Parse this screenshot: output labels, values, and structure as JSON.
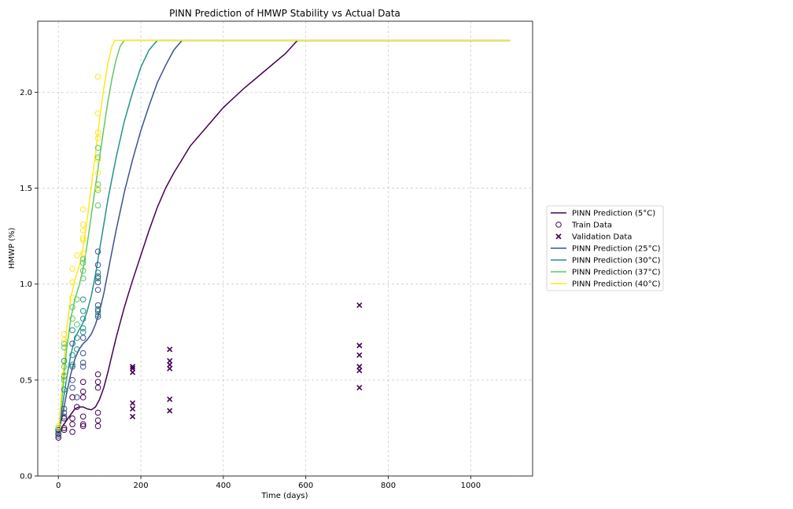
{
  "chart_data": {
    "type": "line",
    "title": "PINN Prediction of HMWP Stability vs Actual Data",
    "xlabel": "Time (days)",
    "ylabel": "HMWP (%)",
    "xlim": [
      -50,
      1150
    ],
    "ylim": [
      0,
      2.37
    ],
    "xticks": [
      0,
      200,
      400,
      600,
      800,
      1000
    ],
    "yticks": [
      0.0,
      0.5,
      1.0,
      1.5,
      2.0
    ],
    "xtick_labels": [
      "0",
      "200",
      "400",
      "600",
      "800",
      "1000"
    ],
    "ytick_labels": [
      "0.0",
      "0.5",
      "1.0",
      "1.5",
      "2.0"
    ],
    "grid": true,
    "legend_position": "center-right-outside",
    "colors": {
      "5C": "#440154",
      "25C": "#3b528b",
      "30C": "#21918c",
      "37C": "#5ec962",
      "40C": "#fde725"
    },
    "legend": [
      {
        "label": "PINN Prediction (5°C)",
        "kind": "line",
        "color": "#440154"
      },
      {
        "label": "Train Data",
        "kind": "circle",
        "color": "#440154"
      },
      {
        "label": "Validation Data",
        "kind": "x",
        "color": "#440154"
      },
      {
        "label": "PINN Prediction (25°C)",
        "kind": "line",
        "color": "#3b528b"
      },
      {
        "label": "PINN Prediction (30°C)",
        "kind": "line",
        "color": "#21918c"
      },
      {
        "label": "PINN Prediction (37°C)",
        "kind": "line",
        "color": "#5ec962"
      },
      {
        "label": "PINN Prediction (40°C)",
        "kind": "line",
        "color": "#fde725"
      }
    ],
    "series": [
      {
        "name": "PINN Prediction (5°C)",
        "type": "line",
        "color": "#440154",
        "x": [
          0,
          10,
          20,
          30,
          40,
          50,
          60,
          70,
          80,
          90,
          100,
          110,
          120,
          130,
          140,
          150,
          160,
          170,
          180,
          200,
          220,
          240,
          260,
          280,
          300,
          320,
          340,
          360,
          400,
          450,
          500,
          550,
          580,
          1095
        ],
        "y": [
          0.23,
          0.26,
          0.29,
          0.32,
          0.35,
          0.36,
          0.36,
          0.35,
          0.345,
          0.36,
          0.4,
          0.46,
          0.54,
          0.63,
          0.72,
          0.8,
          0.88,
          0.95,
          1.02,
          1.15,
          1.28,
          1.4,
          1.5,
          1.58,
          1.65,
          1.72,
          1.77,
          1.82,
          1.92,
          2.02,
          2.11,
          2.2,
          2.27,
          2.27
        ]
      },
      {
        "name": "PINN Prediction (25°C)",
        "type": "line",
        "color": "#3b528b",
        "x": [
          0,
          10,
          20,
          30,
          40,
          50,
          60,
          70,
          80,
          90,
          100,
          110,
          120,
          130,
          140,
          160,
          180,
          200,
          220,
          240,
          260,
          280,
          300,
          1095
        ],
        "y": [
          0.22,
          0.32,
          0.43,
          0.53,
          0.61,
          0.66,
          0.69,
          0.71,
          0.74,
          0.79,
          0.86,
          0.95,
          1.06,
          1.17,
          1.28,
          1.48,
          1.65,
          1.8,
          1.93,
          2.05,
          2.14,
          2.22,
          2.27,
          2.27
        ]
      },
      {
        "name": "PINN Prediction (30°C)",
        "type": "line",
        "color": "#21918c",
        "x": [
          0,
          10,
          20,
          30,
          40,
          50,
          60,
          70,
          80,
          90,
          100,
          110,
          120,
          140,
          160,
          180,
          200,
          220,
          240,
          1095
        ],
        "y": [
          0.22,
          0.37,
          0.51,
          0.63,
          0.72,
          0.76,
          0.8,
          0.86,
          0.94,
          1.05,
          1.18,
          1.31,
          1.44,
          1.66,
          1.85,
          2.0,
          2.13,
          2.22,
          2.27,
          2.27
        ]
      },
      {
        "name": "PINN Prediction (37°C)",
        "type": "line",
        "color": "#5ec962",
        "x": [
          0,
          10,
          20,
          30,
          40,
          50,
          60,
          70,
          80,
          90,
          100,
          110,
          120,
          130,
          140,
          150,
          160,
          1095
        ],
        "y": [
          0.22,
          0.44,
          0.66,
          0.82,
          0.92,
          0.99,
          1.08,
          1.21,
          1.36,
          1.51,
          1.66,
          1.81,
          1.95,
          2.07,
          2.17,
          2.24,
          2.27,
          2.27
        ]
      },
      {
        "name": "PINN Prediction (40°C)",
        "type": "line",
        "color": "#fde725",
        "x": [
          0,
          10,
          20,
          30,
          40,
          50,
          60,
          70,
          80,
          90,
          100,
          110,
          120,
          130,
          137,
          1095
        ],
        "y": [
          0.22,
          0.5,
          0.76,
          0.93,
          1.02,
          1.09,
          1.19,
          1.34,
          1.51,
          1.68,
          1.86,
          2.02,
          2.15,
          2.24,
          2.27,
          2.27
        ]
      },
      {
        "name": "Train Data",
        "type": "scatter",
        "marker": "circle",
        "points": [
          {
            "x": 0,
            "y": 0.2,
            "c": "5C"
          },
          {
            "x": 0,
            "y": 0.22,
            "c": "5C"
          },
          {
            "x": 0,
            "y": 0.24,
            "c": "5C"
          },
          {
            "x": 0,
            "y": 0.21,
            "c": "25C"
          },
          {
            "x": 0,
            "y": 0.23,
            "c": "30C"
          },
          {
            "x": 0,
            "y": 0.25,
            "c": "37C"
          },
          {
            "x": 0,
            "y": 0.26,
            "c": "40C"
          },
          {
            "x": 14,
            "y": 0.24,
            "c": "5C"
          },
          {
            "x": 14,
            "y": 0.25,
            "c": "5C"
          },
          {
            "x": 14,
            "y": 0.3,
            "c": "5C"
          },
          {
            "x": 14,
            "y": 0.31,
            "c": "25C"
          },
          {
            "x": 14,
            "y": 0.33,
            "c": "25C"
          },
          {
            "x": 14,
            "y": 0.35,
            "c": "25C"
          },
          {
            "x": 14,
            "y": 0.45,
            "c": "30C"
          },
          {
            "x": 14,
            "y": 0.52,
            "c": "30C"
          },
          {
            "x": 14,
            "y": 0.6,
            "c": "30C"
          },
          {
            "x": 14,
            "y": 0.5,
            "c": "37C"
          },
          {
            "x": 14,
            "y": 0.57,
            "c": "37C"
          },
          {
            "x": 14,
            "y": 0.67,
            "c": "37C"
          },
          {
            "x": 14,
            "y": 0.69,
            "c": "37C"
          },
          {
            "x": 14,
            "y": 0.53,
            "c": "40C"
          },
          {
            "x": 14,
            "y": 0.71,
            "c": "40C"
          },
          {
            "x": 14,
            "y": 0.74,
            "c": "40C"
          },
          {
            "x": 34,
            "y": 0.23,
            "c": "5C"
          },
          {
            "x": 34,
            "y": 0.27,
            "c": "5C"
          },
          {
            "x": 34,
            "y": 0.3,
            "c": "5C"
          },
          {
            "x": 34,
            "y": 0.41,
            "c": "5C"
          },
          {
            "x": 34,
            "y": 0.46,
            "c": "25C"
          },
          {
            "x": 34,
            "y": 0.5,
            "c": "25C"
          },
          {
            "x": 34,
            "y": 0.57,
            "c": "25C"
          },
          {
            "x": 34,
            "y": 0.69,
            "c": "25C"
          },
          {
            "x": 34,
            "y": 0.58,
            "c": "30C"
          },
          {
            "x": 34,
            "y": 0.63,
            "c": "30C"
          },
          {
            "x": 34,
            "y": 0.76,
            "c": "30C"
          },
          {
            "x": 34,
            "y": 0.82,
            "c": "37C"
          },
          {
            "x": 34,
            "y": 0.88,
            "c": "37C"
          },
          {
            "x": 34,
            "y": 0.93,
            "c": "40C"
          },
          {
            "x": 34,
            "y": 1.01,
            "c": "40C"
          },
          {
            "x": 34,
            "y": 1.08,
            "c": "40C"
          },
          {
            "x": 45,
            "y": 0.36,
            "c": "5C"
          },
          {
            "x": 45,
            "y": 0.41,
            "c": "25C"
          },
          {
            "x": 45,
            "y": 0.66,
            "c": "30C"
          },
          {
            "x": 45,
            "y": 0.72,
            "c": "30C"
          },
          {
            "x": 45,
            "y": 0.79,
            "c": "37C"
          },
          {
            "x": 45,
            "y": 0.92,
            "c": "37C"
          },
          {
            "x": 45,
            "y": 1.15,
            "c": "40C"
          },
          {
            "x": 60,
            "y": 0.26,
            "c": "5C"
          },
          {
            "x": 60,
            "y": 0.27,
            "c": "5C"
          },
          {
            "x": 60,
            "y": 0.31,
            "c": "5C"
          },
          {
            "x": 60,
            "y": 0.41,
            "c": "5C"
          },
          {
            "x": 60,
            "y": 0.44,
            "c": "5C"
          },
          {
            "x": 60,
            "y": 0.49,
            "c": "5C"
          },
          {
            "x": 60,
            "y": 0.57,
            "c": "25C"
          },
          {
            "x": 60,
            "y": 0.59,
            "c": "25C"
          },
          {
            "x": 60,
            "y": 0.64,
            "c": "25C"
          },
          {
            "x": 60,
            "y": 0.72,
            "c": "25C"
          },
          {
            "x": 60,
            "y": 0.75,
            "c": "30C"
          },
          {
            "x": 60,
            "y": 0.77,
            "c": "30C"
          },
          {
            "x": 60,
            "y": 0.82,
            "c": "30C"
          },
          {
            "x": 60,
            "y": 0.86,
            "c": "30C"
          },
          {
            "x": 60,
            "y": 0.92,
            "c": "30C"
          },
          {
            "x": 60,
            "y": 1.03,
            "c": "37C"
          },
          {
            "x": 60,
            "y": 1.07,
            "c": "37C"
          },
          {
            "x": 60,
            "y": 1.11,
            "c": "37C"
          },
          {
            "x": 60,
            "y": 1.13,
            "c": "37C"
          },
          {
            "x": 60,
            "y": 1.16,
            "c": "40C"
          },
          {
            "x": 60,
            "y": 1.23,
            "c": "40C"
          },
          {
            "x": 60,
            "y": 1.24,
            "c": "40C"
          },
          {
            "x": 60,
            "y": 1.28,
            "c": "40C"
          },
          {
            "x": 60,
            "y": 1.31,
            "c": "40C"
          },
          {
            "x": 60,
            "y": 1.39,
            "c": "40C"
          },
          {
            "x": 96,
            "y": 0.26,
            "c": "5C"
          },
          {
            "x": 96,
            "y": 0.29,
            "c": "5C"
          },
          {
            "x": 96,
            "y": 0.33,
            "c": "5C"
          },
          {
            "x": 96,
            "y": 0.46,
            "c": "5C"
          },
          {
            "x": 96,
            "y": 0.49,
            "c": "5C"
          },
          {
            "x": 96,
            "y": 0.53,
            "c": "5C"
          },
          {
            "x": 96,
            "y": 0.83,
            "c": "25C"
          },
          {
            "x": 96,
            "y": 0.86,
            "c": "25C"
          },
          {
            "x": 96,
            "y": 0.89,
            "c": "25C"
          },
          {
            "x": 96,
            "y": 0.97,
            "c": "25C"
          },
          {
            "x": 96,
            "y": 1.01,
            "c": "25C"
          },
          {
            "x": 96,
            "y": 1.04,
            "c": "25C"
          },
          {
            "x": 96,
            "y": 1.1,
            "c": "25C"
          },
          {
            "x": 96,
            "y": 1.17,
            "c": "25C"
          },
          {
            "x": 96,
            "y": 0.84,
            "c": "30C"
          },
          {
            "x": 96,
            "y": 0.87,
            "c": "30C"
          },
          {
            "x": 96,
            "y": 1.03,
            "c": "30C"
          },
          {
            "x": 96,
            "y": 1.06,
            "c": "30C"
          },
          {
            "x": 96,
            "y": 1.41,
            "c": "37C"
          },
          {
            "x": 96,
            "y": 1.49,
            "c": "37C"
          },
          {
            "x": 96,
            "y": 1.52,
            "c": "37C"
          },
          {
            "x": 96,
            "y": 1.66,
            "c": "37C"
          },
          {
            "x": 96,
            "y": 1.71,
            "c": "37C"
          },
          {
            "x": 96,
            "y": 1.5,
            "c": "40C"
          },
          {
            "x": 96,
            "y": 1.58,
            "c": "40C"
          },
          {
            "x": 96,
            "y": 1.65,
            "c": "40C"
          },
          {
            "x": 96,
            "y": 1.76,
            "c": "40C"
          },
          {
            "x": 96,
            "y": 1.79,
            "c": "40C"
          },
          {
            "x": 96,
            "y": 1.89,
            "c": "40C"
          },
          {
            "x": 96,
            "y": 2.08,
            "c": "40C"
          }
        ]
      },
      {
        "name": "Validation Data",
        "type": "scatter",
        "marker": "x",
        "points": [
          {
            "x": 180,
            "y": 0.31,
            "c": "5C"
          },
          {
            "x": 180,
            "y": 0.35,
            "c": "5C"
          },
          {
            "x": 180,
            "y": 0.38,
            "c": "5C"
          },
          {
            "x": 180,
            "y": 0.54,
            "c": "5C"
          },
          {
            "x": 180,
            "y": 0.56,
            "c": "5C"
          },
          {
            "x": 180,
            "y": 0.57,
            "c": "5C"
          },
          {
            "x": 270,
            "y": 0.34,
            "c": "5C"
          },
          {
            "x": 270,
            "y": 0.4,
            "c": "5C"
          },
          {
            "x": 270,
            "y": 0.56,
            "c": "5C"
          },
          {
            "x": 270,
            "y": 0.58,
            "c": "5C"
          },
          {
            "x": 270,
            "y": 0.6,
            "c": "5C"
          },
          {
            "x": 270,
            "y": 0.66,
            "c": "5C"
          },
          {
            "x": 730,
            "y": 0.46,
            "c": "5C"
          },
          {
            "x": 730,
            "y": 0.55,
            "c": "5C"
          },
          {
            "x": 730,
            "y": 0.57,
            "c": "5C"
          },
          {
            "x": 730,
            "y": 0.63,
            "c": "5C"
          },
          {
            "x": 730,
            "y": 0.68,
            "c": "5C"
          },
          {
            "x": 730,
            "y": 0.89,
            "c": "5C"
          }
        ]
      }
    ]
  }
}
